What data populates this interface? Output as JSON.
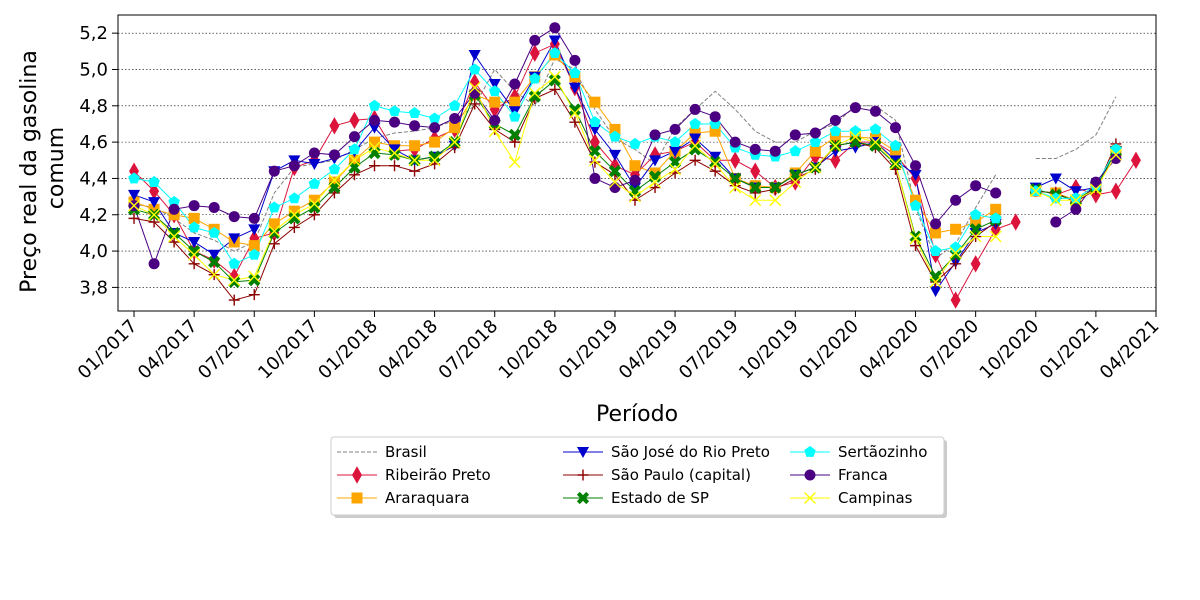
{
  "chart_data": {
    "type": "line",
    "xlabel": "Período",
    "ylabel_lines": [
      "Preço real da gasolina",
      "comum"
    ],
    "ylim": [
      3.67,
      5.3
    ],
    "yticks": [
      "3,8",
      "4,0",
      "4,2",
      "4,4",
      "4,6",
      "4,8",
      "5,0",
      "5,2"
    ],
    "ytick_values": [
      3.8,
      4.0,
      4.2,
      4.4,
      4.6,
      4.8,
      5.0,
      5.2
    ],
    "xlim": [
      -0.8,
      51.0
    ],
    "xticks": [
      "01/2017",
      "04/2017",
      "07/2017",
      "10/2017",
      "01/2018",
      "04/2018",
      "07/2018",
      "10/2018",
      "01/2019",
      "04/2019",
      "07/2019",
      "10/2019",
      "01/2020",
      "04/2020",
      "07/2020",
      "10/2020",
      "01/2021",
      "04/2021"
    ],
    "xtick_positions": [
      0,
      3,
      6,
      9,
      12,
      15,
      18,
      21,
      24,
      27,
      30,
      33,
      36,
      39,
      42,
      45,
      48,
      51
    ],
    "grid": "horizontal dotted",
    "legend_position": "below plot, centered",
    "x_meaning": "month index, 0 = 01/2017",
    "series": [
      {
        "name": "Brasil",
        "color": "#808080",
        "marker": "none",
        "dashed": true,
        "values": [
          4.26,
          4.24,
          4.18,
          4.1,
          4.06,
          4.0,
          4.05,
          4.32,
          4.46,
          4.48,
          4.5,
          4.56,
          4.62,
          4.65,
          4.66,
          4.68,
          4.72,
          4.8,
          5.0,
          4.88,
          4.8,
          5.06,
          5.0,
          4.78,
          4.62,
          4.56,
          4.48,
          4.68,
          4.78,
          4.88,
          4.78,
          4.66,
          4.6,
          4.6,
          4.66,
          4.7,
          4.8,
          4.8,
          4.72,
          4.24,
          3.96,
          4.04,
          4.24,
          4.42,
          null,
          4.51,
          4.51,
          4.56,
          4.64,
          4.85
        ]
      },
      {
        "name": "Ribeirão Preto",
        "color": "#dc143c",
        "marker": "diamond",
        "values": [
          4.44,
          4.33,
          4.2,
          4.0,
          3.95,
          3.86,
          4.07,
          4.1,
          4.46,
          4.5,
          4.69,
          4.72,
          4.73,
          4.55,
          4.56,
          4.62,
          4.67,
          4.93,
          4.78,
          4.85,
          5.09,
          5.14,
          4.9,
          4.6,
          4.47,
          4.42,
          4.53,
          4.55,
          4.6,
          4.5,
          4.5,
          4.44,
          4.35,
          4.38,
          4.52,
          4.5,
          4.6,
          4.6,
          4.53,
          4.4,
          3.98,
          3.73,
          3.93,
          4.12,
          4.16,
          null,
          4.31,
          4.35,
          4.31,
          4.33,
          4.5
        ]
      },
      {
        "name": "Araraquara",
        "color": "#ffa500",
        "marker": "square",
        "values": [
          4.27,
          4.23,
          4.2,
          4.18,
          4.12,
          4.05,
          4.03,
          4.15,
          4.22,
          4.28,
          4.38,
          4.5,
          4.6,
          4.58,
          4.58,
          4.6,
          4.68,
          4.86,
          4.82,
          4.82,
          4.96,
          5.08,
          4.96,
          4.82,
          4.67,
          4.47,
          4.43,
          4.55,
          4.65,
          4.66,
          4.4,
          4.36,
          4.35,
          4.43,
          4.55,
          4.63,
          4.63,
          4.62,
          4.55,
          4.28,
          4.1,
          4.12,
          4.16,
          4.23,
          null,
          4.33,
          4.32,
          4.28,
          4.35,
          4.55
        ]
      },
      {
        "name": "São José do Rio Preto",
        "color": "#0000cd",
        "marker": "triangle-down",
        "values": [
          4.31,
          4.27,
          4.1,
          4.05,
          3.98,
          4.07,
          4.12,
          4.44,
          4.5,
          4.48,
          4.51,
          4.55,
          4.68,
          4.56,
          4.5,
          4.52,
          4.58,
          5.08,
          4.92,
          4.77,
          4.96,
          5.16,
          4.9,
          4.67,
          4.53,
          4.35,
          4.5,
          4.55,
          4.62,
          4.52,
          4.4,
          4.35,
          4.35,
          4.42,
          4.46,
          4.55,
          4.57,
          4.6,
          4.5,
          4.42,
          3.78,
          3.94,
          4.1,
          4.15,
          null,
          4.35,
          4.4,
          4.33,
          4.35,
          4.55
        ]
      },
      {
        "name": "São Paulo (capital)",
        "color": "#8b0000",
        "marker": "plus",
        "values": [
          4.18,
          4.16,
          4.05,
          3.93,
          3.87,
          3.73,
          3.76,
          4.04,
          4.13,
          4.2,
          4.32,
          4.42,
          4.47,
          4.47,
          4.44,
          4.48,
          4.57,
          4.81,
          4.67,
          4.6,
          4.84,
          4.89,
          4.71,
          4.49,
          4.42,
          4.28,
          4.35,
          4.43,
          4.5,
          4.44,
          4.36,
          4.32,
          4.34,
          4.4,
          4.45,
          4.58,
          4.6,
          4.57,
          4.45,
          4.03,
          3.83,
          3.93,
          4.08,
          4.16,
          null,
          4.33,
          4.32,
          4.27,
          4.34,
          4.59
        ]
      },
      {
        "name": "Estado de SP",
        "color": "#008000",
        "marker": "x-thick",
        "values": [
          4.23,
          4.2,
          4.1,
          4.0,
          3.94,
          3.83,
          3.84,
          4.1,
          4.18,
          4.24,
          4.35,
          4.46,
          4.54,
          4.53,
          4.5,
          4.52,
          4.6,
          4.86,
          4.7,
          4.64,
          4.85,
          4.94,
          4.78,
          4.55,
          4.44,
          4.33,
          4.41,
          4.49,
          4.56,
          4.49,
          4.4,
          4.35,
          4.35,
          4.42,
          4.46,
          4.58,
          4.6,
          4.58,
          4.48,
          4.08,
          3.86,
          3.98,
          4.12,
          4.17,
          null,
          4.34,
          4.31,
          4.28,
          4.35,
          4.55
        ]
      },
      {
        "name": "Sertãozinho",
        "color": "#00ffff",
        "marker": "pentagon",
        "values": [
          4.4,
          4.38,
          4.27,
          4.13,
          4.1,
          3.93,
          3.98,
          4.24,
          4.29,
          4.37,
          4.45,
          4.56,
          4.8,
          4.77,
          4.76,
          4.73,
          4.8,
          5.0,
          4.88,
          4.74,
          4.95,
          5.09,
          4.98,
          4.71,
          4.63,
          4.59,
          4.63,
          4.6,
          4.7,
          4.7,
          4.57,
          4.53,
          4.52,
          4.55,
          4.6,
          4.66,
          4.66,
          4.67,
          4.58,
          4.25,
          4.0,
          4.02,
          4.2,
          4.18,
          null,
          4.33,
          4.29,
          4.29,
          4.36,
          4.56
        ]
      },
      {
        "name": "Franca",
        "color": "#4b0082",
        "marker": "circle",
        "values": [
          4.25,
          3.93,
          4.23,
          4.25,
          4.24,
          4.19,
          4.18,
          4.44,
          4.47,
          4.54,
          4.53,
          4.63,
          4.72,
          4.71,
          4.69,
          4.68,
          4.73,
          4.87,
          4.72,
          4.92,
          5.16,
          5.23,
          5.05,
          4.4,
          4.35,
          4.39,
          4.64,
          4.67,
          4.78,
          4.74,
          4.6,
          4.56,
          4.55,
          4.64,
          4.65,
          4.72,
          4.79,
          4.77,
          4.68,
          4.47,
          4.15,
          4.28,
          4.36,
          4.32,
          null,
          null,
          4.16,
          4.23,
          4.38,
          4.51
        ]
      },
      {
        "name": "Campinas",
        "color": "#ffff00",
        "marker": "x",
        "values": [
          4.25,
          4.2,
          4.08,
          3.98,
          3.87,
          3.84,
          3.86,
          4.11,
          4.2,
          4.26,
          4.39,
          4.5,
          4.57,
          4.54,
          4.5,
          4.5,
          4.6,
          4.9,
          4.66,
          4.49,
          4.87,
          4.96,
          4.76,
          4.5,
          4.38,
          4.3,
          4.38,
          4.45,
          4.58,
          4.48,
          4.35,
          4.28,
          4.28,
          4.38,
          4.46,
          4.58,
          4.63,
          4.6,
          4.48,
          4.07,
          3.83,
          3.99,
          4.08,
          4.08,
          null,
          4.33,
          4.28,
          4.28,
          4.34,
          4.53
        ]
      }
    ]
  }
}
